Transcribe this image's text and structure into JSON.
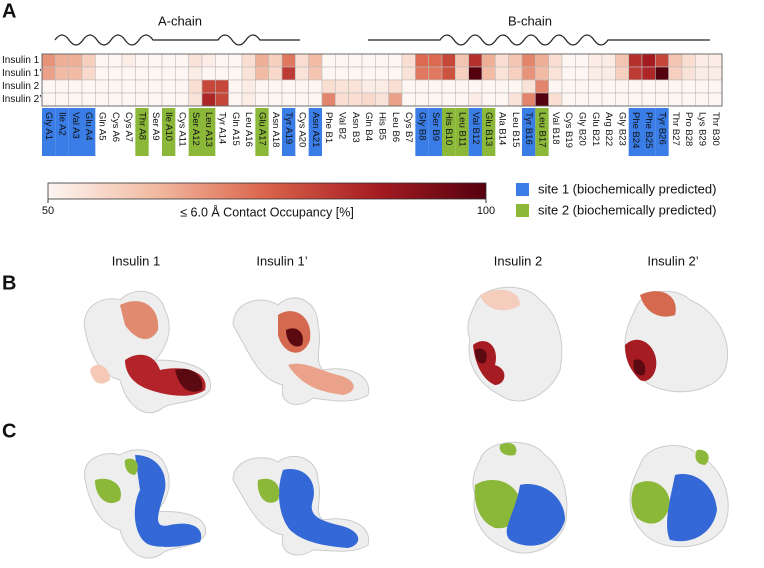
{
  "panels": [
    "A",
    "B",
    "C"
  ],
  "chart_data": {
    "type": "heatmap",
    "chain_labels": [
      "A-chain",
      "B-chain"
    ],
    "rows": [
      "Insulin 1",
      "Insulin 1’",
      "Insulin 2",
      "Insulin 2’"
    ],
    "categories": [
      "Gly A1",
      "Ile A2",
      "Val A3",
      "Glu A4",
      "Gln A5",
      "Cys A6",
      "Cys A7",
      "Thr A8",
      "Ser A9",
      "Ile A10",
      "Cys A11",
      "Ser A12",
      "Leu A13",
      "Tyr A14",
      "Gln A15",
      "Leu A16",
      "Glu A17",
      "Asn A18",
      "Tyr A19",
      "Cys A20",
      "Asn A21",
      "Phe B1",
      "Val B2",
      "Asn B3",
      "Gln B4",
      "His B5",
      "Leu B6",
      "Cys B7",
      "Gly B8",
      "Ser B9",
      "His B10",
      "Leu B11",
      "Val B12",
      "Glu B13",
      "Ala B14",
      "Leu B15",
      "Tyr B16",
      "Leu B17",
      "Val B18",
      "Cys B19",
      "Gly B20",
      "Glu B21",
      "Arg B22",
      "Gly B23",
      "Phe B24",
      "Phe B25",
      "Tyr B26",
      "Thr B27",
      "Pro B28",
      "Lys B29",
      "Thr B30"
    ],
    "values": [
      [
        68,
        64,
        64,
        58,
        50,
        50,
        52,
        50,
        50,
        50,
        50,
        54,
        52,
        50,
        50,
        55,
        64,
        58,
        72,
        55,
        62,
        50,
        50,
        50,
        50,
        50,
        50,
        55,
        74,
        74,
        80,
        60,
        84,
        64,
        55,
        60,
        70,
        64,
        55,
        50,
        50,
        52,
        52,
        60,
        84,
        88,
        80,
        60,
        55,
        52,
        52
      ],
      [
        66,
        62,
        62,
        56,
        50,
        50,
        50,
        50,
        50,
        50,
        50,
        52,
        50,
        50,
        50,
        54,
        62,
        56,
        82,
        54,
        60,
        50,
        50,
        50,
        50,
        50,
        50,
        54,
        72,
        72,
        78,
        58,
        100,
        62,
        54,
        58,
        68,
        62,
        54,
        50,
        50,
        52,
        52,
        58,
        82,
        86,
        100,
        58,
        54,
        52,
        52
      ],
      [
        50,
        50,
        50,
        50,
        50,
        50,
        50,
        50,
        50,
        50,
        50,
        55,
        80,
        80,
        50,
        52,
        50,
        50,
        50,
        50,
        50,
        55,
        54,
        54,
        52,
        52,
        55,
        50,
        50,
        50,
        50,
        50,
        50,
        50,
        50,
        50,
        54,
        70,
        50,
        50,
        50,
        50,
        50,
        50,
        50,
        50,
        50,
        50,
        50,
        50,
        50
      ],
      [
        50,
        50,
        50,
        50,
        50,
        50,
        50,
        50,
        50,
        50,
        50,
        54,
        86,
        80,
        50,
        52,
        50,
        50,
        50,
        50,
        50,
        70,
        55,
        55,
        56,
        54,
        66,
        50,
        50,
        50,
        50,
        50,
        52,
        50,
        50,
        54,
        70,
        100,
        55,
        50,
        50,
        50,
        50,
        50,
        50,
        50,
        50,
        50,
        50,
        50,
        50
      ]
    ],
    "sites": [
      1,
      1,
      1,
      1,
      null,
      null,
      null,
      2,
      null,
      2,
      null,
      2,
      2,
      null,
      null,
      null,
      2,
      null,
      1,
      null,
      1,
      null,
      null,
      null,
      null,
      null,
      null,
      null,
      1,
      1,
      2,
      2,
      1,
      2,
      null,
      null,
      1,
      2,
      null,
      null,
      null,
      null,
      null,
      null,
      1,
      1,
      1,
      null,
      null,
      null,
      null
    ],
    "colorscale": [
      "#fdf6f2",
      "#f2b9a0",
      "#d9634a",
      "#a61c22",
      "#55000f"
    ],
    "colorbar": {
      "label": "≤ 6.0 Å Contact Occupancy [%]",
      "lim": [
        50,
        100
      ],
      "ticks": [
        50,
        100
      ]
    },
    "site_legend": [
      {
        "name": "site 1 (biochemically predicted)",
        "color": "#3b7de6"
      },
      {
        "name": "site 2 (biochemically predicted)",
        "color": "#8cb83a"
      }
    ]
  },
  "structure_labels": [
    "Insulin 1",
    "Insulin 1’",
    "Insulin 2",
    "Insulin 2’"
  ]
}
